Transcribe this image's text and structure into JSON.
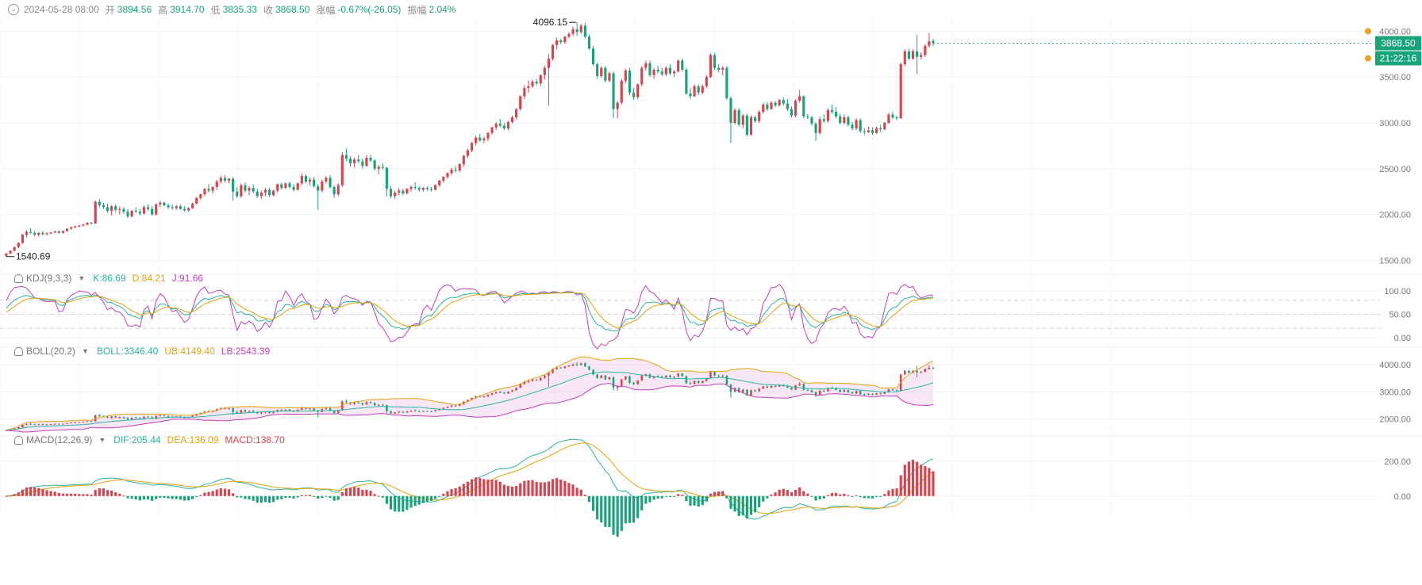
{
  "header": {
    "date": "2024-05-28 08:00",
    "open_label": "开",
    "open": "3894.56",
    "high_label": "高",
    "high": "3914.70",
    "low_label": "低",
    "low": "3835.33",
    "close_label": "收",
    "close": "3868.50",
    "change_label": "涨幅",
    "change": "-0.67%(-26.05)",
    "amplitude_label": "振幅",
    "amplitude": "2.04%"
  },
  "kdj": {
    "name": "KDJ(9,3,3)",
    "k": "K:86.69",
    "d": "D:84.21",
    "j": "J:91.66"
  },
  "boll": {
    "name": "BOLL(20,2)",
    "mid": "BOLL:3346.40",
    "ub": "UB:4149.40",
    "lb": "LB:2543.39"
  },
  "macd": {
    "name": "MACD(12,26,9)",
    "dif": "DIF:205.44",
    "dea": "DEA:136.09",
    "macd": "MACD:138.70"
  },
  "markers": {
    "high_label": "4096.15",
    "low_label": "1540.69",
    "price_tag": "3868.50",
    "countdown": "21:22:16"
  },
  "colors": {
    "up": "#d9434e",
    "down": "#1aa37a",
    "k": "#2bb3a3",
    "d": "#e2a20a",
    "j": "#c23fb8",
    "tag": "#19a57a"
  },
  "chart_data": {
    "type": "candlestick",
    "candles": [
      [
        1545,
        1580,
        1540.69,
        1575
      ],
      [
        1575,
        1610,
        1568,
        1605
      ],
      [
        1605,
        1650,
        1598,
        1645
      ],
      [
        1645,
        1700,
        1630,
        1690
      ],
      [
        1690,
        1790,
        1680,
        1780
      ],
      [
        1780,
        1830,
        1750,
        1810
      ],
      [
        1810,
        1850,
        1790,
        1800
      ],
      [
        1800,
        1820,
        1760,
        1780
      ],
      [
        1780,
        1810,
        1760,
        1800
      ],
      [
        1800,
        1820,
        1770,
        1785
      ],
      [
        1785,
        1805,
        1770,
        1795
      ],
      [
        1795,
        1810,
        1785,
        1805
      ],
      [
        1805,
        1825,
        1795,
        1815
      ],
      [
        1815,
        1830,
        1790,
        1800
      ],
      [
        1800,
        1825,
        1790,
        1820
      ],
      [
        1820,
        1850,
        1810,
        1845
      ],
      [
        1845,
        1870,
        1835,
        1860
      ],
      [
        1860,
        1880,
        1850,
        1870
      ],
      [
        1870,
        1885,
        1860,
        1880
      ],
      [
        1880,
        1900,
        1870,
        1890
      ],
      [
        1890,
        1920,
        1880,
        1910
      ],
      [
        1910,
        1920,
        1890,
        1900
      ],
      [
        1900,
        2150,
        1900,
        2140
      ],
      [
        2140,
        2170,
        2080,
        2100
      ],
      [
        2100,
        2130,
        2060,
        2080
      ],
      [
        2080,
        2120,
        2020,
        2040
      ],
      [
        2040,
        2100,
        1990,
        2090
      ],
      [
        2090,
        2110,
        2030,
        2050
      ],
      [
        2050,
        2090,
        2000,
        2060
      ],
      [
        2060,
        2080,
        2010,
        2030
      ],
      [
        2030,
        2060,
        1960,
        1980
      ],
      [
        1980,
        2050,
        1970,
        2040
      ],
      [
        2040,
        2080,
        2020,
        2030
      ],
      [
        2030,
        2060,
        1990,
        2010
      ],
      [
        2010,
        2100,
        2000,
        2080
      ],
      [
        2080,
        2110,
        2040,
        2060
      ],
      [
        2060,
        2090,
        1990,
        2000
      ],
      [
        2000,
        2120,
        1990,
        2110
      ],
      [
        2110,
        2150,
        2080,
        2130
      ],
      [
        2130,
        2140,
        2090,
        2100
      ],
      [
        2100,
        2120,
        2060,
        2080
      ],
      [
        2080,
        2110,
        2050,
        2070
      ],
      [
        2070,
        2100,
        2050,
        2090
      ],
      [
        2090,
        2110,
        2050,
        2060
      ],
      [
        2060,
        2090,
        2030,
        2045
      ],
      [
        2045,
        2080,
        2030,
        2070
      ],
      [
        2070,
        2130,
        2060,
        2120
      ],
      [
        2120,
        2190,
        2110,
        2180
      ],
      [
        2180,
        2230,
        2160,
        2220
      ],
      [
        2220,
        2290,
        2200,
        2280
      ],
      [
        2280,
        2330,
        2240,
        2260
      ],
      [
        2260,
        2310,
        2230,
        2300
      ],
      [
        2300,
        2380,
        2270,
        2360
      ],
      [
        2360,
        2420,
        2340,
        2400
      ],
      [
        2400,
        2430,
        2350,
        2370
      ],
      [
        2370,
        2400,
        2340,
        2390
      ],
      [
        2390,
        2410,
        2150,
        2250
      ],
      [
        2250,
        2300,
        2180,
        2200
      ],
      [
        2200,
        2340,
        2180,
        2320
      ],
      [
        2320,
        2350,
        2240,
        2260
      ],
      [
        2260,
        2310,
        2210,
        2290
      ],
      [
        2290,
        2330,
        2230,
        2250
      ],
      [
        2250,
        2280,
        2180,
        2200
      ],
      [
        2200,
        2260,
        2170,
        2240
      ],
      [
        2240,
        2290,
        2200,
        2270
      ],
      [
        2270,
        2290,
        2190,
        2210
      ],
      [
        2210,
        2270,
        2200,
        2260
      ],
      [
        2260,
        2340,
        2240,
        2330
      ],
      [
        2330,
        2350,
        2270,
        2290
      ],
      [
        2290,
        2350,
        2280,
        2340
      ],
      [
        2340,
        2360,
        2280,
        2300
      ],
      [
        2300,
        2330,
        2250,
        2270
      ],
      [
        2270,
        2350,
        2260,
        2340
      ],
      [
        2340,
        2450,
        2320,
        2420
      ],
      [
        2420,
        2440,
        2340,
        2360
      ],
      [
        2360,
        2400,
        2320,
        2380
      ],
      [
        2380,
        2410,
        2290,
        2310
      ],
      [
        2310,
        2330,
        2050,
        2260
      ],
      [
        2260,
        2380,
        2240,
        2360
      ],
      [
        2360,
        2420,
        2340,
        2400
      ],
      [
        2400,
        2430,
        2280,
        2300
      ],
      [
        2300,
        2320,
        2180,
        2220
      ],
      [
        2220,
        2340,
        2200,
        2320
      ],
      [
        2320,
        2680,
        2300,
        2650
      ],
      [
        2650,
        2720,
        2580,
        2610
      ],
      [
        2610,
        2640,
        2520,
        2560
      ],
      [
        2560,
        2620,
        2510,
        2600
      ],
      [
        2600,
        2650,
        2560,
        2580
      ],
      [
        2580,
        2610,
        2500,
        2530
      ],
      [
        2530,
        2650,
        2520,
        2620
      ],
      [
        2620,
        2650,
        2570,
        2590
      ],
      [
        2590,
        2600,
        2480,
        2500
      ],
      [
        2500,
        2540,
        2440,
        2520
      ],
      [
        2520,
        2560,
        2490,
        2510
      ],
      [
        2510,
        2520,
        2200,
        2280
      ],
      [
        2280,
        2310,
        2180,
        2200
      ],
      [
        2200,
        2260,
        2170,
        2240
      ],
      [
        2240,
        2290,
        2210,
        2260
      ],
      [
        2260,
        2280,
        2210,
        2230
      ],
      [
        2230,
        2290,
        2220,
        2280
      ],
      [
        2280,
        2320,
        2250,
        2300
      ],
      [
        2300,
        2350,
        2270,
        2290
      ],
      [
        2290,
        2310,
        2250,
        2270
      ],
      [
        2270,
        2300,
        2250,
        2290
      ],
      [
        2290,
        2310,
        2260,
        2280
      ],
      [
        2280,
        2300,
        2250,
        2270
      ],
      [
        2270,
        2330,
        2260,
        2320
      ],
      [
        2320,
        2380,
        2300,
        2370
      ],
      [
        2370,
        2420,
        2350,
        2410
      ],
      [
        2410,
        2460,
        2390,
        2450
      ],
      [
        2450,
        2510,
        2430,
        2490
      ],
      [
        2490,
        2530,
        2460,
        2480
      ],
      [
        2480,
        2560,
        2460,
        2550
      ],
      [
        2550,
        2650,
        2520,
        2640
      ],
      [
        2640,
        2720,
        2620,
        2700
      ],
      [
        2700,
        2790,
        2680,
        2780
      ],
      [
        2780,
        2860,
        2750,
        2840
      ],
      [
        2840,
        2880,
        2790,
        2810
      ],
      [
        2810,
        2850,
        2780,
        2830
      ],
      [
        2830,
        2900,
        2800,
        2890
      ],
      [
        2890,
        2960,
        2870,
        2950
      ],
      [
        2950,
        3010,
        2920,
        2990
      ],
      [
        2990,
        3040,
        2950,
        2970
      ],
      [
        2970,
        3000,
        2920,
        2940
      ],
      [
        2940,
        3020,
        2920,
        3010
      ],
      [
        3010,
        3080,
        2990,
        3060
      ],
      [
        3060,
        3160,
        3040,
        3150
      ],
      [
        3150,
        3300,
        3130,
        3290
      ],
      [
        3290,
        3410,
        3260,
        3380
      ],
      [
        3380,
        3460,
        3330,
        3400
      ],
      [
        3400,
        3470,
        3380,
        3450
      ],
      [
        3450,
        3480,
        3410,
        3430
      ],
      [
        3430,
        3530,
        3400,
        3520
      ],
      [
        3520,
        3620,
        3470,
        3600
      ],
      [
        3600,
        3750,
        3190,
        3700
      ],
      [
        3700,
        3860,
        3680,
        3850
      ],
      [
        3850,
        3930,
        3800,
        3900
      ],
      [
        3900,
        3920,
        3860,
        3880
      ],
      [
        3880,
        3950,
        3860,
        3940
      ],
      [
        3940,
        3990,
        3920,
        3970
      ],
      [
        3970,
        4050,
        3950,
        4020
      ],
      [
        4020,
        4096.15,
        3950,
        3990
      ],
      [
        3990,
        4080,
        3970,
        4060
      ],
      [
        4060,
        4090,
        3920,
        3940
      ],
      [
        3940,
        3960,
        3800,
        3810
      ],
      [
        3810,
        3840,
        3620,
        3640
      ],
      [
        3640,
        3660,
        3480,
        3510
      ],
      [
        3510,
        3620,
        3490,
        3600
      ],
      [
        3600,
        3620,
        3440,
        3460
      ],
      [
        3460,
        3560,
        3440,
        3540
      ],
      [
        3540,
        3560,
        3050,
        3150
      ],
      [
        3150,
        3240,
        3050,
        3220
      ],
      [
        3220,
        3480,
        3200,
        3460
      ],
      [
        3460,
        3590,
        3430,
        3570
      ],
      [
        3570,
        3600,
        3300,
        3330
      ],
      [
        3330,
        3380,
        3250,
        3280
      ],
      [
        3280,
        3430,
        3260,
        3420
      ],
      [
        3420,
        3620,
        3400,
        3600
      ],
      [
        3600,
        3680,
        3570,
        3650
      ],
      [
        3650,
        3680,
        3500,
        3520
      ],
      [
        3520,
        3600,
        3480,
        3580
      ],
      [
        3580,
        3620,
        3540,
        3560
      ],
      [
        3560,
        3600,
        3510,
        3530
      ],
      [
        3530,
        3620,
        3510,
        3600
      ],
      [
        3600,
        3640,
        3520,
        3540
      ],
      [
        3540,
        3580,
        3500,
        3560
      ],
      [
        3560,
        3690,
        3550,
        3680
      ],
      [
        3680,
        3700,
        3560,
        3580
      ],
      [
        3580,
        3600,
        3300,
        3320
      ],
      [
        3320,
        3380,
        3260,
        3290
      ],
      [
        3290,
        3420,
        3280,
        3400
      ],
      [
        3400,
        3420,
        3300,
        3330
      ],
      [
        3330,
        3420,
        3310,
        3400
      ],
      [
        3400,
        3520,
        3380,
        3500
      ],
      [
        3500,
        3760,
        3490,
        3740
      ],
      [
        3740,
        3760,
        3580,
        3600
      ],
      [
        3600,
        3640,
        3550,
        3580
      ],
      [
        3580,
        3620,
        3520,
        3600
      ],
      [
        3600,
        3620,
        3250,
        3270
      ],
      [
        3270,
        3290,
        2780,
        3000
      ],
      [
        3000,
        3160,
        2980,
        3140
      ],
      [
        3140,
        3160,
        2960,
        2980
      ],
      [
        2980,
        3100,
        2940,
        3080
      ],
      [
        3080,
        3100,
        2850,
        2870
      ],
      [
        2870,
        3080,
        2860,
        3060
      ],
      [
        3060,
        3080,
        3000,
        3020
      ],
      [
        3020,
        3140,
        3000,
        3120
      ],
      [
        3120,
        3220,
        3100,
        3200
      ],
      [
        3200,
        3230,
        3130,
        3150
      ],
      [
        3150,
        3240,
        3140,
        3220
      ],
      [
        3220,
        3240,
        3170,
        3190
      ],
      [
        3190,
        3260,
        3180,
        3250
      ],
      [
        3250,
        3280,
        3190,
        3210
      ],
      [
        3210,
        3260,
        3130,
        3150
      ],
      [
        3150,
        3180,
        3060,
        3080
      ],
      [
        3080,
        3260,
        3060,
        3240
      ],
      [
        3240,
        3360,
        3220,
        3290
      ],
      [
        3290,
        3300,
        3050,
        3070
      ],
      [
        3070,
        3100,
        3040,
        3060
      ],
      [
        3060,
        3080,
        2970,
        2990
      ],
      [
        2990,
        3010,
        2800,
        2890
      ],
      [
        2890,
        3070,
        2870,
        3040
      ],
      [
        3040,
        3090,
        3000,
        3020
      ],
      [
        3020,
        3160,
        3000,
        3140
      ],
      [
        3140,
        3200,
        3100,
        3120
      ],
      [
        3120,
        3170,
        3050,
        3070
      ],
      [
        3070,
        3100,
        2980,
        3000
      ],
      [
        3000,
        3090,
        2980,
        3060
      ],
      [
        3060,
        3080,
        2960,
        2980
      ],
      [
        2980,
        3010,
        2920,
        2940
      ],
      [
        2940,
        3050,
        2920,
        3030
      ],
      [
        3030,
        3050,
        2890,
        2910
      ],
      [
        2910,
        2940,
        2870,
        2900
      ],
      [
        2900,
        2960,
        2890,
        2920
      ],
      [
        2920,
        2950,
        2870,
        2890
      ],
      [
        2890,
        2960,
        2880,
        2940
      ],
      [
        2940,
        2980,
        2900,
        2930
      ],
      [
        2930,
        3010,
        2920,
        3000
      ],
      [
        3000,
        3110,
        2990,
        3090
      ],
      [
        3090,
        3120,
        3040,
        3060
      ],
      [
        3060,
        3080,
        3030,
        3050
      ],
      [
        3050,
        3660,
        3040,
        3640
      ],
      [
        3640,
        3800,
        3620,
        3780
      ],
      [
        3780,
        3810,
        3680,
        3700
      ],
      [
        3700,
        3800,
        3690,
        3780
      ],
      [
        3780,
        3960,
        3530,
        3720
      ],
      [
        3720,
        3770,
        3690,
        3740
      ],
      [
        3740,
        3860,
        3720,
        3840
      ],
      [
        3840,
        3980,
        3820,
        3890
      ],
      [
        3894.56,
        3914.7,
        3835.33,
        3868.5
      ]
    ],
    "price_axis": {
      "ylim": [
        1400,
        4150
      ],
      "ticks": [
        1500,
        2000,
        2500,
        3000,
        3500,
        4000
      ]
    },
    "kdj_axis": {
      "ylim": [
        -10,
        115
      ],
      "ticks": [
        0,
        50,
        100
      ],
      "ref_lines": [
        20,
        50,
        80
      ]
    },
    "boll_axis": {
      "ylim": [
        1600,
        4300
      ],
      "ticks": [
        2000,
        3000,
        4000
      ]
    },
    "macd_axis": {
      "ylim": [
        -110,
        290
      ],
      "ticks": [
        0,
        200
      ]
    },
    "last_values": {
      "K": 86.69,
      "D": 84.21,
      "J": 91.66,
      "BOLL": 3346.4,
      "UB": 4149.4,
      "LB": 2543.39,
      "DIF": 205.44,
      "DEA": 136.09,
      "MACD": 138.7
    }
  }
}
